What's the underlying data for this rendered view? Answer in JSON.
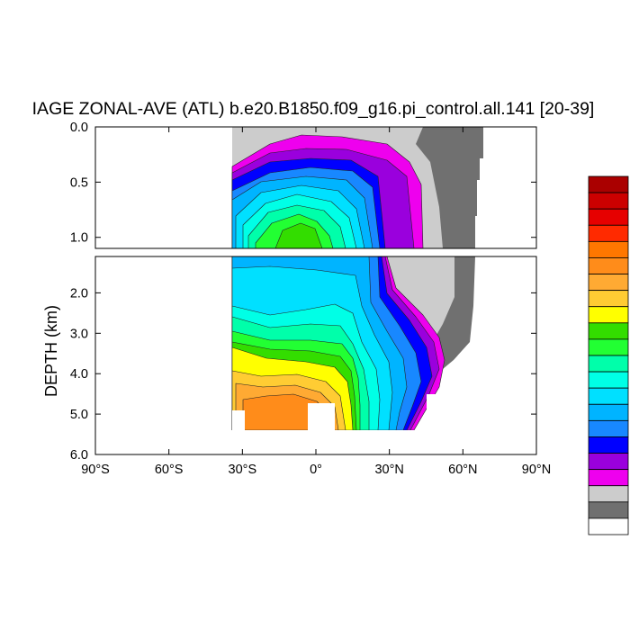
{
  "chart_data": {
    "type": "heatmap",
    "title": "IAGE ZONAL-AVE (ATL) b.e20.B1850.f09_g16.pi_control.all.141 [20-39]",
    "ylabel": "DEPTH (km)",
    "xlabel": "",
    "x_ticks": [
      "90°S",
      "60°S",
      "30°S",
      "0°",
      "30°N",
      "60°N",
      "90°N"
    ],
    "x_range": [
      -90,
      90
    ],
    "upper_panel": {
      "y_range": [
        0.0,
        1.1
      ],
      "y_ticks": [
        "0.0",
        "0.5",
        "1.0"
      ],
      "y_tick_values": [
        0.0,
        0.5,
        1.0
      ]
    },
    "lower_panel": {
      "y_range": [
        1.1,
        6.0
      ],
      "y_ticks": [
        "2.0",
        "3.0",
        "4.0",
        "5.0",
        "6.0"
      ],
      "y_tick_values": [
        2.0,
        3.0,
        4.0,
        5.0,
        6.0
      ]
    },
    "colorbar": {
      "placement": "right",
      "labels_shown": false,
      "colors": [
        "#aa0000",
        "#cc0000",
        "#e60000",
        "#ff2a00",
        "#ff7700",
        "#ff8c1a",
        "#ffaa33",
        "#ffcc33",
        "#ffff00",
        "#33dd00",
        "#22ff33",
        "#00ffaa",
        "#00ffe6",
        "#00e0ff",
        "#00b4ff",
        "#1888ff",
        "#0000ff",
        "#9a00dd",
        "#ee00ee",
        "#cccccc",
        "#707070",
        "#ffffff"
      ]
    },
    "land_color": "#707070",
    "shelf_color": "#cccccc"
  }
}
